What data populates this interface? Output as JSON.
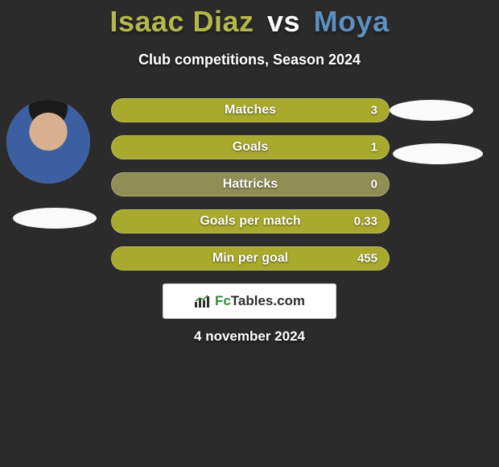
{
  "title": {
    "player_a": "Isaac Diaz",
    "vs": "vs",
    "player_b": "Moya",
    "color_a": "#b3b84c",
    "color_vs": "#ffffff",
    "color_b": "#5f8fbf"
  },
  "subtitle": "Club competitions, Season 2024",
  "bars": [
    {
      "label": "Matches",
      "value": "3",
      "color": "#a9a92e"
    },
    {
      "label": "Goals",
      "value": "1",
      "color": "#a9a92e"
    },
    {
      "label": "Hattricks",
      "value": "0",
      "color": "#8f8f55"
    },
    {
      "label": "Goals per match",
      "value": "0.33",
      "color": "#a9a92e"
    },
    {
      "label": "Min per goal",
      "value": "455",
      "color": "#a9a92e"
    }
  ],
  "logo": {
    "prefix": "Fc",
    "suffix": "Tables.com"
  },
  "date": "4 november 2024",
  "background_color": "#2b2b2b"
}
